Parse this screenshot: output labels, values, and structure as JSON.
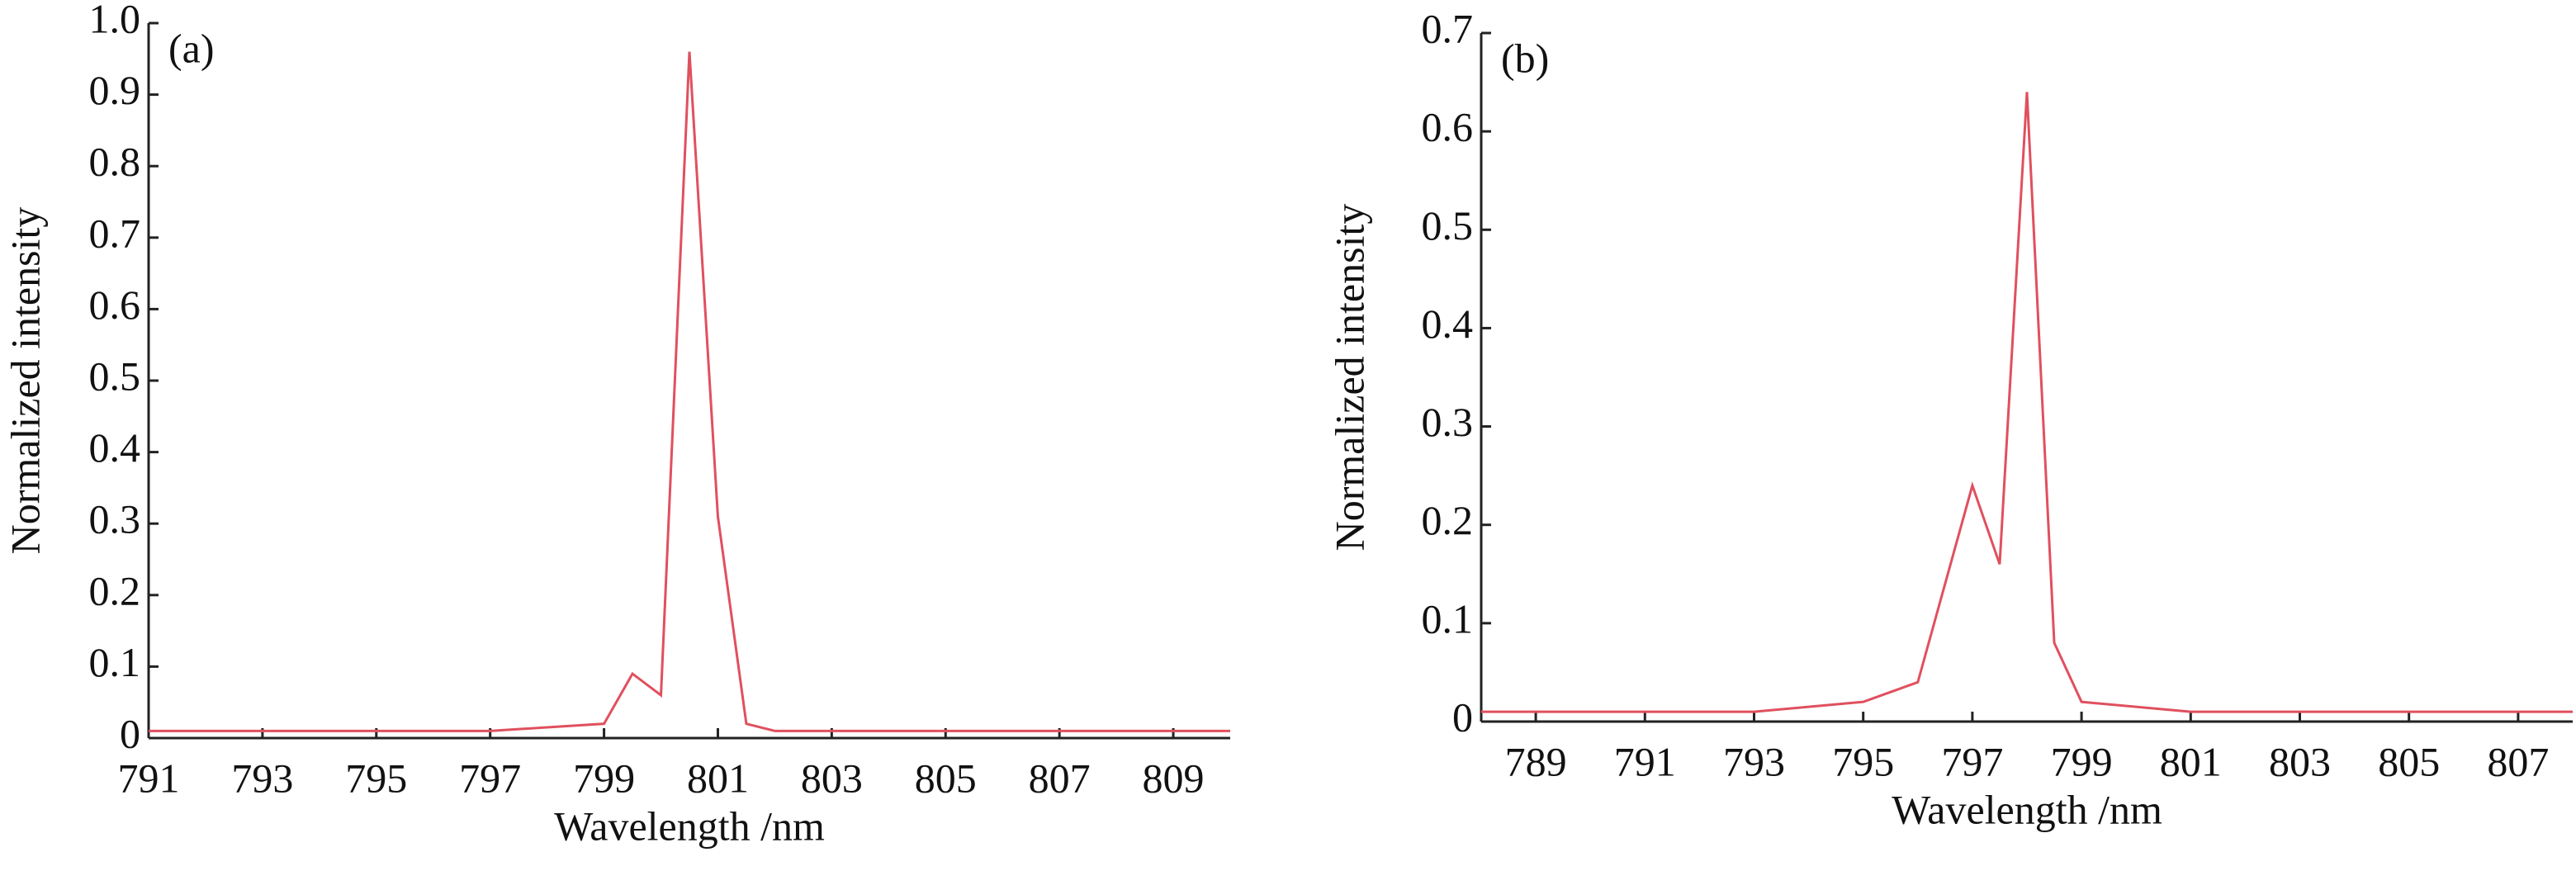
{
  "chart_data": [
    {
      "type": "line",
      "annotation": "(a)",
      "x_label": "Wavelength /nm",
      "y_label": "Normalized intensity",
      "x": [
        791,
        797,
        798,
        799,
        799.5,
        800,
        800.5,
        801,
        801.5,
        802,
        810
      ],
      "values": [
        0.01,
        0.01,
        0.015,
        0.02,
        0.09,
        0.06,
        0.96,
        0.31,
        0.02,
        0.01,
        0.01
      ],
      "color": "#e0505e",
      "xlim": [
        791,
        810
      ],
      "xticks": [
        791,
        793,
        795,
        797,
        799,
        801,
        803,
        805,
        807,
        809
      ],
      "ylim": [
        0,
        1
      ],
      "yticks": [
        0,
        0.1,
        0.2,
        0.3,
        0.4,
        0.5,
        0.6,
        0.7,
        0.8,
        0.9,
        {
          "value": 1,
          "label": "1.0"
        }
      ],
      "grid": false
    },
    {
      "type": "line",
      "annotation": "(b)",
      "x_label": "Wavelength /nm",
      "y_label": "Normalized intensity",
      "x": [
        788,
        793,
        795,
        796,
        797,
        797.5,
        798,
        798.5,
        799,
        801,
        808
      ],
      "values": [
        0.01,
        0.01,
        0.02,
        0.04,
        0.24,
        0.16,
        0.64,
        0.08,
        0.02,
        0.01,
        0.01
      ],
      "color": "#e0505e",
      "xlim": [
        788,
        808
      ],
      "xticks": [
        789,
        791,
        793,
        795,
        797,
        799,
        801,
        803,
        805,
        807
      ],
      "ylim": [
        0,
        0.7
      ],
      "yticks": [
        0,
        0.1,
        0.2,
        0.3,
        0.4,
        0.5,
        0.6,
        0.7
      ],
      "grid": false
    }
  ]
}
